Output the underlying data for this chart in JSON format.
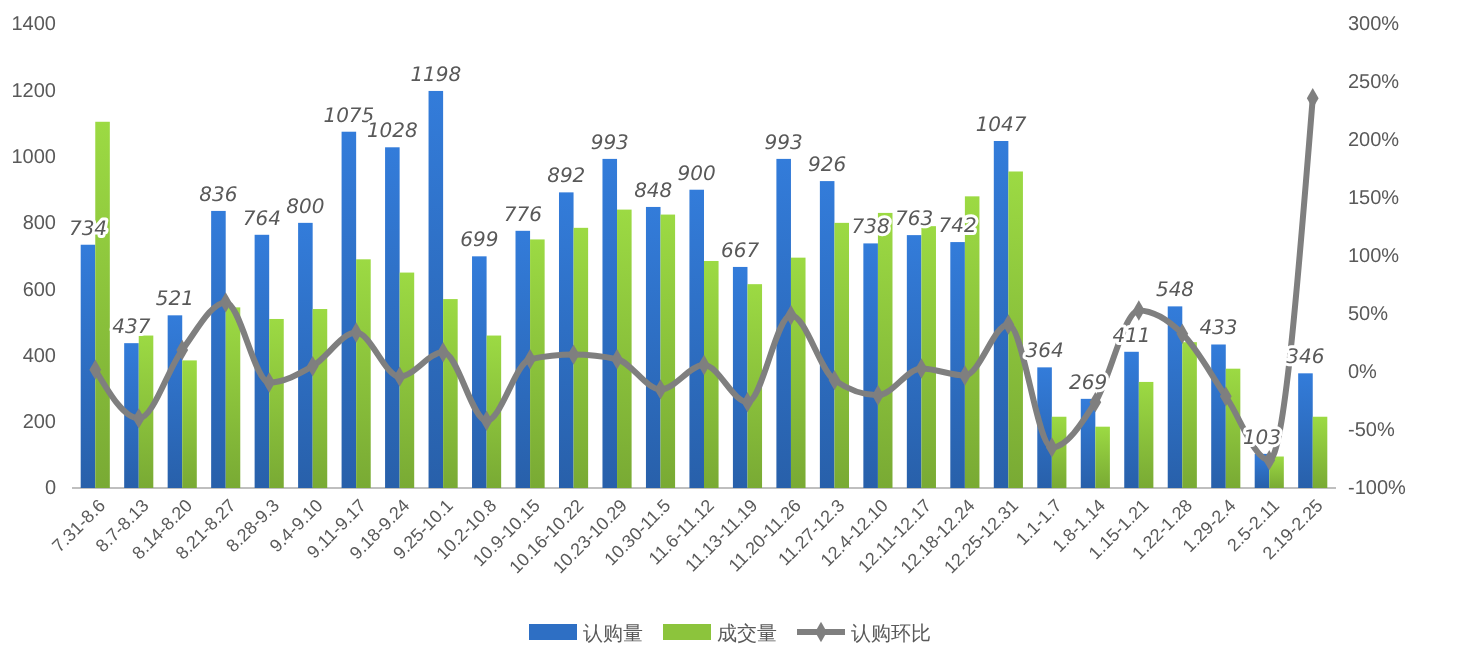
{
  "chart_data": {
    "type": "bar",
    "categories": [
      "7.31-8.6",
      "8.7-8.13",
      "8.14-8.20",
      "8.21-8.27",
      "8.28-9.3",
      "9.4-9.10",
      "9.11-9.17",
      "9.18-9.24",
      "9.25-10.1",
      "10.2-10.8",
      "10.9-10.15",
      "10.16-10.22",
      "10.23-10.29",
      "10.30-11.5",
      "11.6-11.12",
      "11.13-11.19",
      "11.20-11.26",
      "11.27-12.3",
      "12.4-12.10",
      "12.11-12.17",
      "12.18-12.24",
      "12.25-12.31",
      "1.1-1.7",
      "1.8-1.14",
      "1.15-1.21",
      "1.22-1.28",
      "1.29-2.4",
      "2.5-2.11",
      "2.19-2.25"
    ],
    "series": [
      {
        "name": "认购量",
        "color": "#2e6fc4",
        "values": [
          734,
          437,
          521,
          836,
          764,
          800,
          1075,
          1028,
          1198,
          699,
          776,
          892,
          993,
          848,
          900,
          667,
          993,
          926,
          738,
          763,
          742,
          1047,
          364,
          269,
          411,
          548,
          433,
          103,
          346
        ],
        "value_labels": [
          "734",
          "437",
          "521",
          "836",
          "764",
          "800",
          "1075",
          "1028",
          "1198",
          "699",
          "776",
          "892",
          "993",
          "848",
          "900",
          "667",
          "993",
          "926",
          "738",
          "763",
          "742",
          "1047",
          "364",
          "269",
          "411",
          "548",
          "433",
          "103",
          "346"
        ]
      },
      {
        "name": "成交量",
        "color": "#8cc43c",
        "values": [
          1105,
          460,
          385,
          545,
          510,
          540,
          690,
          650,
          570,
          460,
          750,
          785,
          840,
          825,
          685,
          615,
          695,
          800,
          830,
          790,
          880,
          955,
          215,
          185,
          320,
          440,
          360,
          95,
          215
        ]
      },
      {
        "name": "认购环比",
        "type": "line",
        "axis": "y2",
        "color": "#7f7f7f",
        "values": [
          2,
          -40,
          19,
          60,
          -9,
          5,
          34,
          -4,
          17,
          -42,
          11,
          15,
          11,
          -15,
          6,
          -26,
          49,
          -7,
          -20,
          3,
          -3,
          41,
          -65,
          -26,
          53,
          33,
          -21,
          -76,
          236
        ]
      }
    ],
    "ylim": [
      0,
      1400
    ],
    "yticks": [
      0,
      200,
      400,
      600,
      800,
      1000,
      1200,
      1400
    ],
    "y2lim": [
      -100,
      300
    ],
    "y2ticks": [
      {
        "value": -100,
        "label": "-100%"
      },
      {
        "value": -50,
        "label": "-50%"
      },
      {
        "value": 0,
        "label": "0%"
      },
      {
        "value": 50,
        "label": "50%"
      },
      {
        "value": 100,
        "label": "100%"
      },
      {
        "value": 150,
        "label": "150%"
      },
      {
        "value": 200,
        "label": "200%"
      },
      {
        "value": 250,
        "label": "250%"
      },
      {
        "value": 300,
        "label": "300%"
      }
    ],
    "legend": "bottom",
    "marker": "diamond",
    "grid": false
  }
}
